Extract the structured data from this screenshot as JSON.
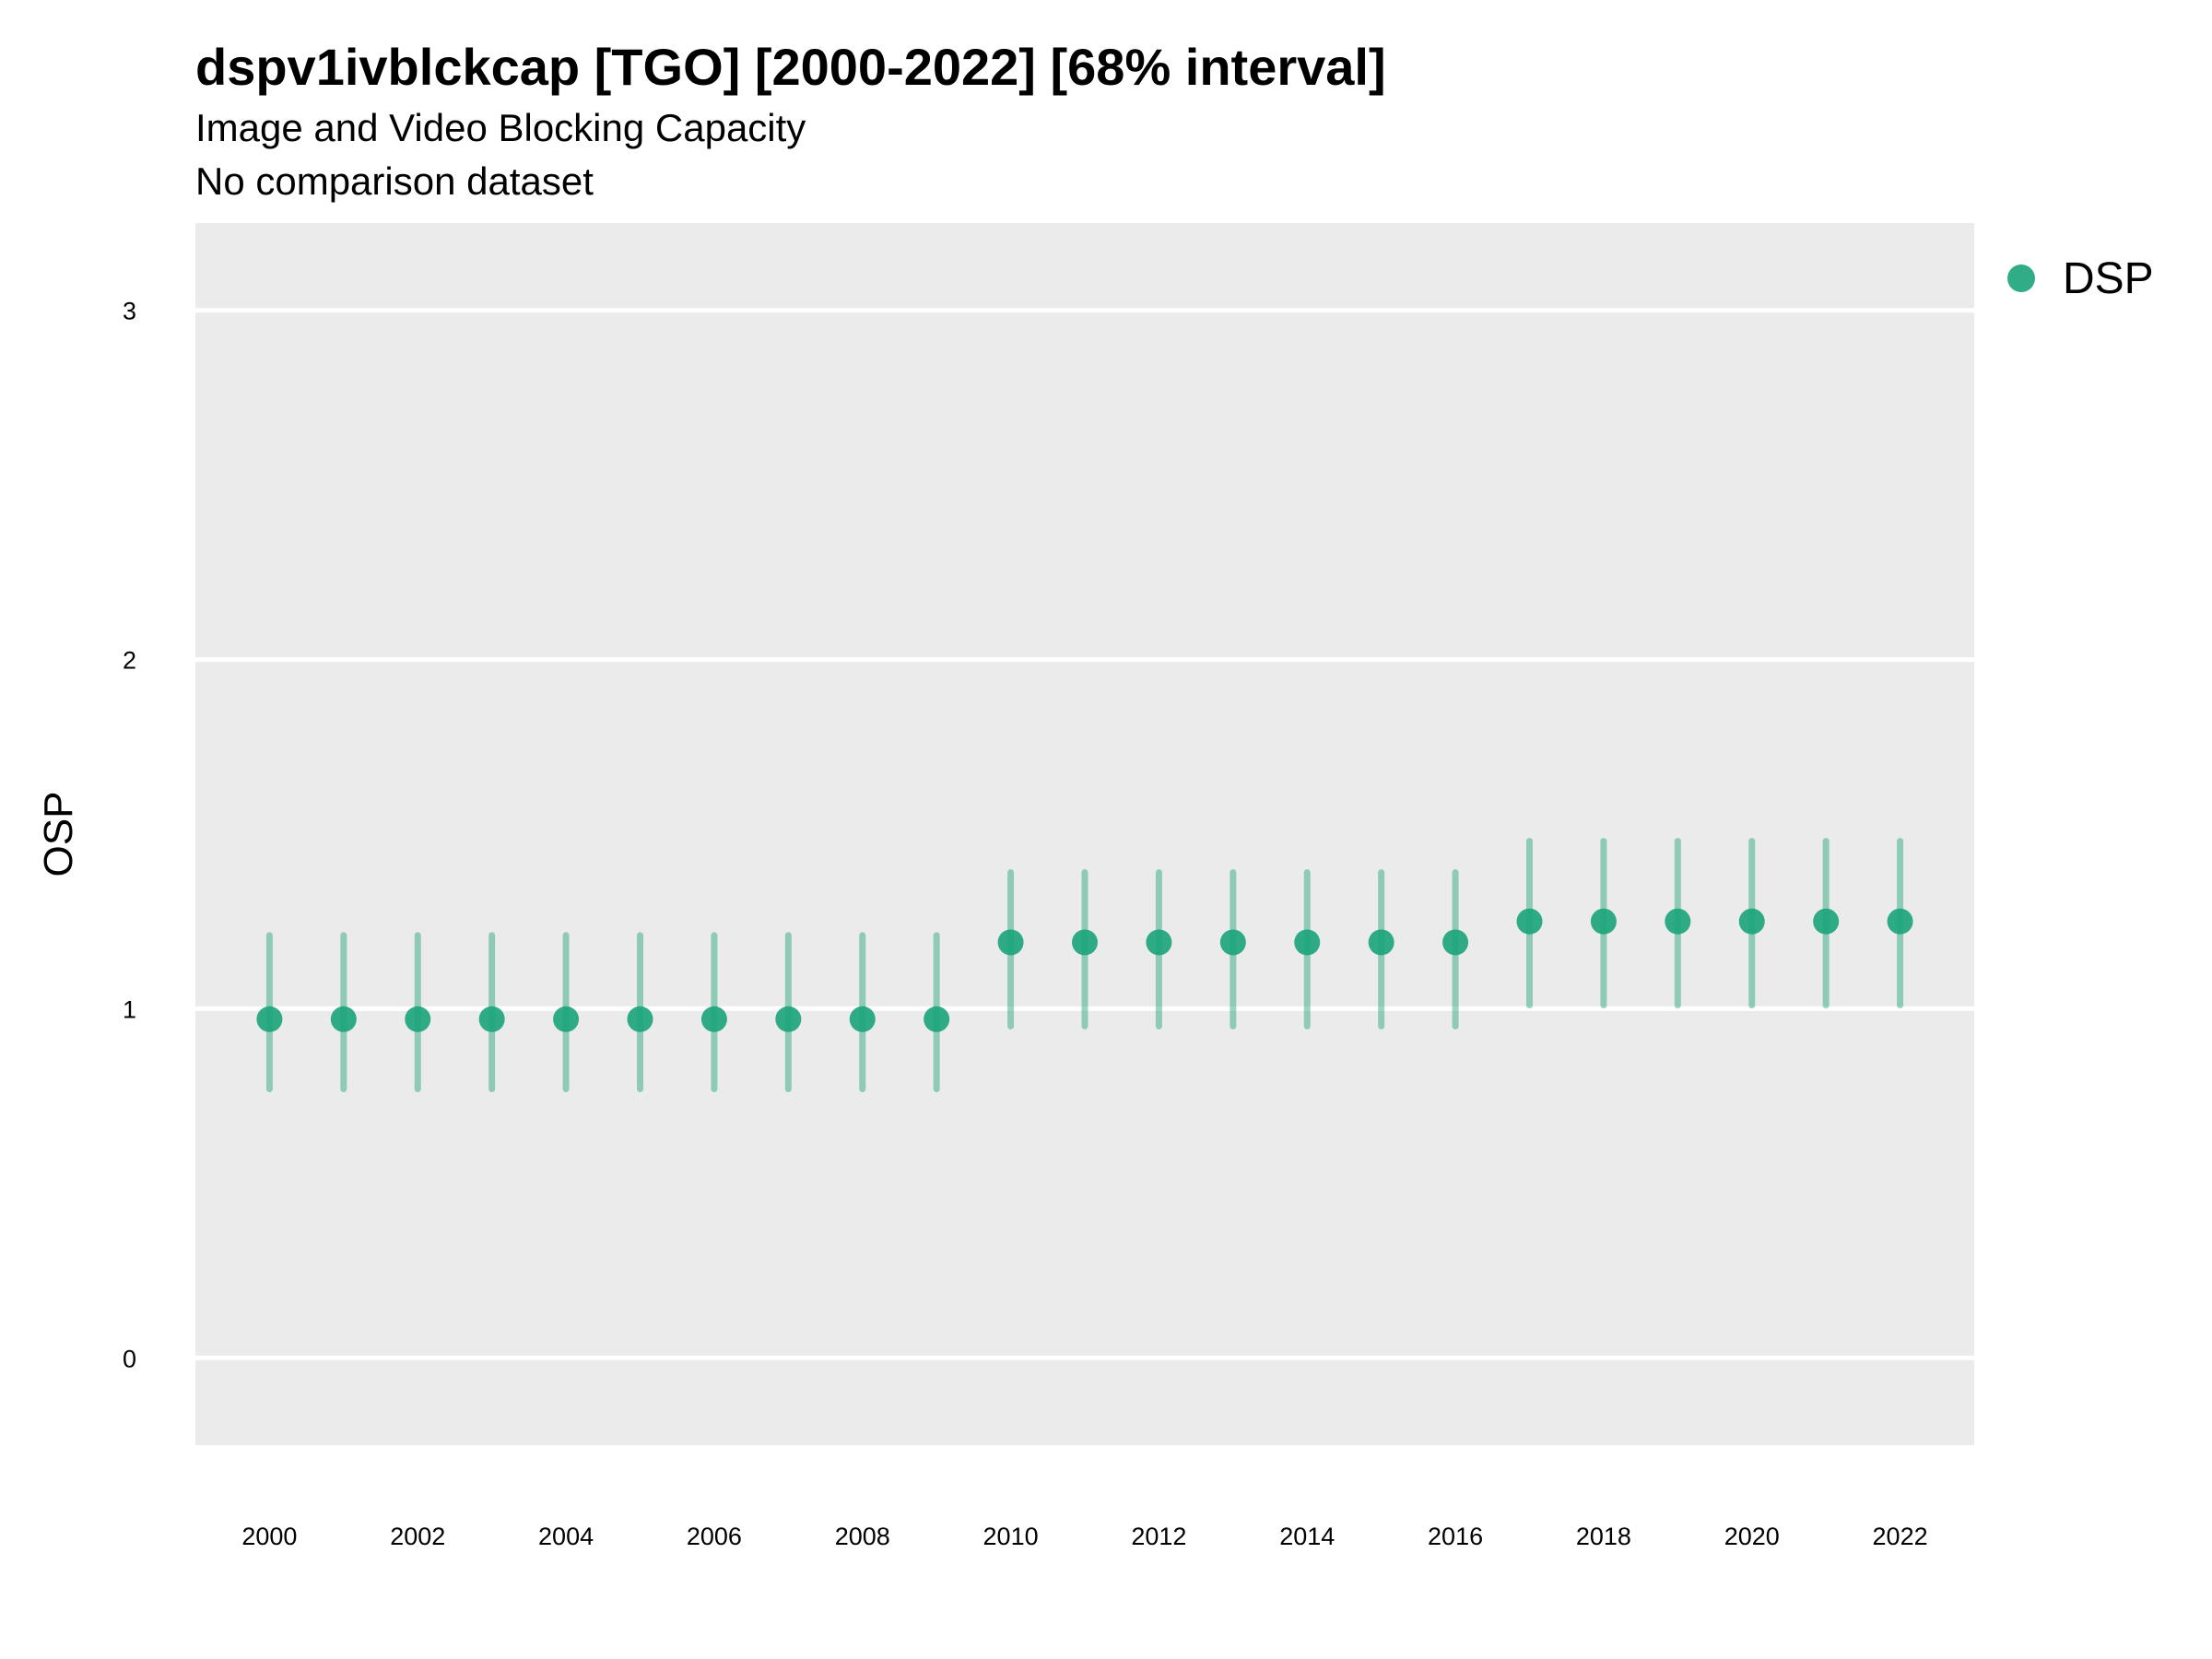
{
  "title": "dspv1ivblckcap [TGO] [2000-2022] [68% interval]",
  "subtitle": "Image and Video Blocking Capacity",
  "subtitle2": "No comparison dataset",
  "chart_data": {
    "type": "scatter",
    "title": "dspv1ivblckcap [TGO] [2000-2022] [68% interval]",
    "subtitle": "Image and Video Blocking Capacity",
    "xlabel": "",
    "ylabel": "OSP",
    "ylim": [
      -0.25,
      3.25
    ],
    "xlim": [
      1999,
      2023
    ],
    "grid": true,
    "legend_position": "right",
    "y_ticks": [
      "0",
      "1",
      "2",
      "3"
    ],
    "x_ticks": [
      "2000",
      "2002",
      "2004",
      "2006",
      "2008",
      "2010",
      "2012",
      "2014",
      "2016",
      "2018",
      "2020",
      "2022"
    ],
    "series": [
      {
        "name": "DSP",
        "color": "#1aa37a",
        "x": [
          2000,
          2001,
          2002,
          2003,
          2004,
          2005,
          2006,
          2007,
          2008,
          2009,
          2010,
          2011,
          2012,
          2013,
          2014,
          2015,
          2016,
          2017,
          2018,
          2019,
          2020,
          2021,
          2022
        ],
        "y": [
          0.97,
          0.97,
          0.97,
          0.97,
          0.97,
          0.97,
          0.97,
          0.97,
          0.97,
          0.97,
          1.19,
          1.19,
          1.19,
          1.19,
          1.19,
          1.19,
          1.19,
          1.25,
          1.25,
          1.25,
          1.25,
          1.25,
          1.25
        ],
        "lower": [
          0.77,
          0.77,
          0.77,
          0.77,
          0.77,
          0.77,
          0.77,
          0.77,
          0.77,
          0.77,
          0.95,
          0.95,
          0.95,
          0.95,
          0.95,
          0.95,
          0.95,
          1.01,
          1.01,
          1.01,
          1.01,
          1.01,
          1.01
        ],
        "upper": [
          1.21,
          1.21,
          1.21,
          1.21,
          1.21,
          1.21,
          1.21,
          1.21,
          1.21,
          1.21,
          1.39,
          1.39,
          1.39,
          1.39,
          1.39,
          1.39,
          1.39,
          1.48,
          1.48,
          1.48,
          1.48,
          1.48,
          1.48
        ]
      }
    ],
    "colors": {
      "panel": "#ebebeb",
      "grid": "#ffffff"
    }
  }
}
